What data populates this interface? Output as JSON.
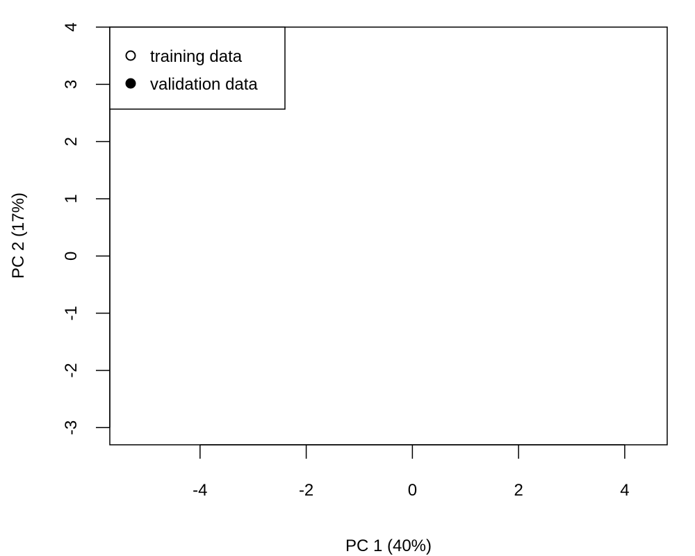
{
  "chart_data": {
    "type": "scatter",
    "title": "",
    "xlabel": "PC 1 (40%)",
    "ylabel": "PC 2 (17%)",
    "xlim": [
      -5.7,
      4.8
    ],
    "ylim": [
      -3.3,
      4.0
    ],
    "xticks": [
      -4,
      -2,
      0,
      2,
      4
    ],
    "yticks": [
      -3,
      -2,
      -1,
      0,
      1,
      2,
      3,
      4
    ],
    "grid": false,
    "legend_position": "top-left",
    "series": [
      {
        "name": "training data",
        "marker": "open-circle",
        "points": []
      },
      {
        "name": "validation data",
        "marker": "filled-circle",
        "points": []
      }
    ]
  }
}
